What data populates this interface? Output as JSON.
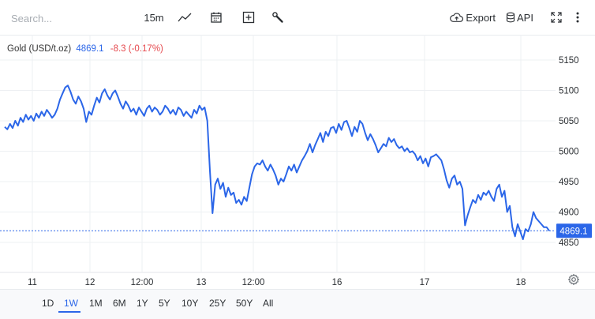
{
  "toolbar": {
    "search_placeholder": "Search...",
    "interval": "15m",
    "export_label": "Export",
    "api_label": "API",
    "icons": [
      "chart-type-icon",
      "calendar-icon",
      "add-indicator-icon",
      "tools-icon",
      "cloud-export-icon",
      "database-icon",
      "fullscreen-icon",
      "more-vert-icon"
    ]
  },
  "legend": {
    "symbol": "Gold (USD/t.oz)",
    "last": "4869.1",
    "change": "-8.3 (-0.17%)"
  },
  "colors": {
    "line": "#2b66e8",
    "change_negative": "#e5484d",
    "price_tag": "#2b66e8",
    "grid": "#edf0f3"
  },
  "chart_data": {
    "type": "line",
    "title": "",
    "xlabel": "",
    "ylabel": "",
    "ylim": [
      4835,
      5180
    ],
    "y_ticks": [
      "5150",
      "5100",
      "5050",
      "5000",
      "4950",
      "4900",
      "4850"
    ],
    "x_ticks": [
      "11",
      "12",
      "12:00",
      "13",
      "12:00",
      "16",
      "17",
      "18"
    ],
    "current_price_label": "4869.1",
    "series": [
      {
        "values": [
          5040,
          5036,
          5045,
          5038,
          5050,
          5042,
          5055,
          5048,
          5060,
          5052,
          5058,
          5050,
          5062,
          5055,
          5065,
          5058,
          5068,
          5062,
          5055,
          5060,
          5070,
          5085,
          5095,
          5105,
          5108,
          5098,
          5085,
          5078,
          5090,
          5082,
          5070,
          5048,
          5065,
          5060,
          5075,
          5088,
          5080,
          5095,
          5102,
          5092,
          5085,
          5095,
          5100,
          5090,
          5078,
          5070,
          5082,
          5075,
          5065,
          5070,
          5060,
          5072,
          5065,
          5058,
          5070,
          5075,
          5065,
          5072,
          5068,
          5060,
          5065,
          5075,
          5070,
          5062,
          5068,
          5060,
          5072,
          5068,
          5058,
          5065,
          5060,
          5055,
          5068,
          5062,
          5075,
          5068,
          5072,
          5050,
          4968,
          4898,
          4945,
          4955,
          4938,
          4948,
          4925,
          4940,
          4928,
          4932,
          4915,
          4920,
          4912,
          4925,
          4918,
          4940,
          4962,
          4975,
          4980,
          4978,
          4985,
          4975,
          4968,
          4978,
          4970,
          4960,
          4945,
          4955,
          4950,
          4962,
          4975,
          4968,
          4978,
          4965,
          4975,
          4985,
          4992,
          5000,
          5012,
          4998,
          5010,
          5020,
          5030,
          5015,
          5032,
          5025,
          5038,
          5040,
          5030,
          5045,
          5035,
          5048,
          5050,
          5038,
          5025,
          5040,
          5032,
          5050,
          5045,
          5030,
          5018,
          5028,
          5020,
          5010,
          4998,
          5005,
          5012,
          5008,
          5022,
          5015,
          5020,
          5010,
          5005,
          5008,
          5000,
          5005,
          4998,
          5000,
          4995,
          4985,
          4992,
          4980,
          4988,
          4975,
          4990,
          4992,
          4995,
          4990,
          4985,
          4970,
          4952,
          4940,
          4955,
          4960,
          4945,
          4950,
          4938,
          4878,
          4895,
          4908,
          4920,
          4915,
          4928,
          4920,
          4932,
          4928,
          4935,
          4925,
          4918,
          4938,
          4945,
          4925,
          4935,
          4900,
          4910,
          4875,
          4860,
          4880,
          4868,
          4855,
          4872,
          4868,
          4880,
          4900,
          4890,
          4885,
          4880,
          4875,
          4875,
          4869.1
        ]
      }
    ]
  },
  "time_axis": {
    "settings_icon": "gear-icon"
  },
  "periods": [
    "1D",
    "1W",
    "1M",
    "6M",
    "1Y",
    "5Y",
    "10Y",
    "25Y",
    "50Y",
    "All"
  ],
  "active_period": "1W"
}
